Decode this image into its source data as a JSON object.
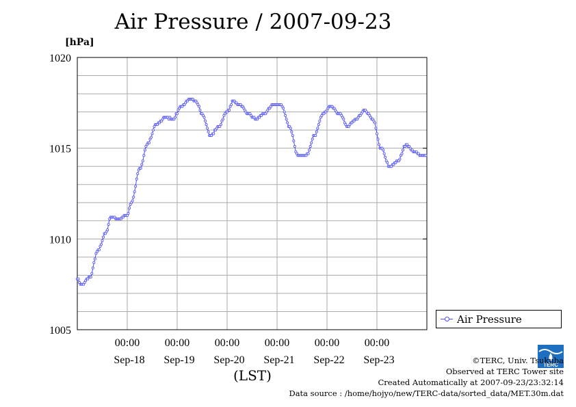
{
  "title": "Air Pressure / 2007-09-23",
  "unit_label": "[hPa]",
  "x_axis_caption": "(LST)",
  "legend": {
    "label": "Air Pressure"
  },
  "credits": {
    "line1": "©TERC, Univ. Tsukuba",
    "line2": "Observed at TERC Tower site",
    "line3": "Created Automatically at 2007-09-23/23:32:14",
    "line4": "Data source : /home/hojyo/new/TERC-data/sorted_data/MET.30m.dat"
  },
  "logo_text": "TERC",
  "colors": {
    "series": "#4b4bff",
    "grid": "#aaaaaa"
  },
  "chart_data": {
    "type": "line",
    "title": "Air Pressure / 2007-09-23",
    "ylabel": "[hPa]",
    "xlabel": "(LST)",
    "ylim": [
      1005,
      1020
    ],
    "yticks": [
      1005,
      1010,
      1015,
      1020
    ],
    "xticks": [
      {
        "time": "00:00",
        "date": "Sep-18"
      },
      {
        "time": "00:00",
        "date": "Sep-19"
      },
      {
        "time": "00:00",
        "date": "Sep-20"
      },
      {
        "time": "00:00",
        "date": "Sep-21"
      },
      {
        "time": "00:00",
        "date": "Sep-22"
      },
      {
        "time": "00:00",
        "date": "Sep-23"
      }
    ],
    "grid": true,
    "legend_position": "right",
    "series": [
      {
        "name": "Air Pressure",
        "x_start": "2007-09-17 00:00",
        "x_end": "2007-09-23 23:30",
        "interval_minutes": 30,
        "keyframes": [
          [
            "2007-09-17 00:00",
            1007.8
          ],
          [
            "2007-09-17 02:00",
            1007.5
          ],
          [
            "2007-09-17 06:00",
            1007.9
          ],
          [
            "2007-09-17 10:00",
            1009.4
          ],
          [
            "2007-09-17 14:00",
            1010.4
          ],
          [
            "2007-09-17 16:00",
            1011.2
          ],
          [
            "2007-09-17 20:00",
            1011.1
          ],
          [
            "2007-09-18 00:00",
            1011.3
          ],
          [
            "2007-09-18 02:00",
            1012.0
          ],
          [
            "2007-09-18 06:00",
            1013.9
          ],
          [
            "2007-09-18 10:00",
            1015.3
          ],
          [
            "2007-09-18 14:00",
            1016.3
          ],
          [
            "2007-09-18 18:00",
            1016.7
          ],
          [
            "2007-09-18 22:00",
            1016.6
          ],
          [
            "2007-09-19 02:00",
            1017.3
          ],
          [
            "2007-09-19 06:00",
            1017.7
          ],
          [
            "2007-09-19 09:00",
            1017.6
          ],
          [
            "2007-09-19 12:00",
            1016.9
          ],
          [
            "2007-09-19 16:00",
            1015.7
          ],
          [
            "2007-09-19 20:00",
            1016.2
          ],
          [
            "2007-09-20 00:00",
            1017.0
          ],
          [
            "2007-09-20 03:00",
            1017.6
          ],
          [
            "2007-09-20 06:00",
            1017.4
          ],
          [
            "2007-09-20 10:00",
            1016.9
          ],
          [
            "2007-09-20 14:00",
            1016.6
          ],
          [
            "2007-09-20 18:00",
            1016.9
          ],
          [
            "2007-09-20 22:00",
            1017.4
          ],
          [
            "2007-09-21 02:00",
            1017.4
          ],
          [
            "2007-09-21 06:00",
            1016.2
          ],
          [
            "2007-09-21 10:00",
            1014.6
          ],
          [
            "2007-09-21 14:00",
            1014.6
          ],
          [
            "2007-09-21 18:00",
            1015.7
          ],
          [
            "2007-09-21 22:00",
            1016.9
          ],
          [
            "2007-09-22 02:00",
            1017.3
          ],
          [
            "2007-09-22 06:00",
            1016.9
          ],
          [
            "2007-09-22 10:00",
            1016.2
          ],
          [
            "2007-09-22 14:00",
            1016.6
          ],
          [
            "2007-09-22 18:00",
            1017.1
          ],
          [
            "2007-09-22 22:00",
            1016.6
          ],
          [
            "2007-09-23 02:00",
            1015.0
          ],
          [
            "2007-09-23 06:00",
            1014.0
          ],
          [
            "2007-09-23 10:00",
            1014.3
          ],
          [
            "2007-09-23 14:00",
            1015.2
          ],
          [
            "2007-09-23 18:00",
            1014.8
          ],
          [
            "2007-09-23 22:00",
            1014.6
          ]
        ]
      }
    ]
  }
}
